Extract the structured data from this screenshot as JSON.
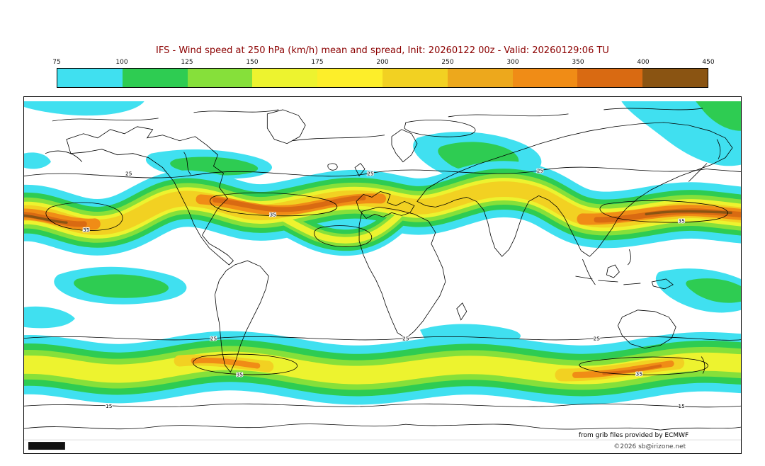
{
  "title": {
    "text": "IFS - Wind speed at 250 hPa (km/h) mean and spread, Init: 20260122 00z - Valid: 20260129:06 TU",
    "color": "#8b0000"
  },
  "colorbar": {
    "ticks": [
      "75",
      "100",
      "125",
      "150",
      "175",
      "200",
      "250",
      "300",
      "350",
      "400",
      "450"
    ],
    "colors": [
      "#40e0f0",
      "#2ecc52",
      "#86e03a",
      "#edf32f",
      "#fdee2a",
      "#f2d122",
      "#eda81c",
      "#f08c16",
      "#d96a12",
      "#8a5412"
    ]
  },
  "map": {
    "labels": {
      "spread_15": "15",
      "spread_25": "25",
      "spread_35": "35"
    },
    "credits": {
      "source": "from grib files provided by ECMWF",
      "copyright": "©2026 sb@irizone.net"
    }
  },
  "chart_data": {
    "type": "heatmap",
    "title": "IFS - Wind speed at 250 hPa (km/h) mean and spread, Init: 20260122 00z - Valid: 20260129:06 TU",
    "variable": "Wind speed at 250 hPa",
    "units": "km/h",
    "model": "IFS",
    "init": "20260122 00z",
    "valid": "20260129:06 TU",
    "scale_ticks": [
      75,
      100,
      125,
      150,
      175,
      200,
      250,
      300,
      350,
      400,
      450
    ],
    "scale_colors": [
      "#40e0f0",
      "#2ecc52",
      "#86e03a",
      "#edf32f",
      "#fdee2a",
      "#f2d122",
      "#eda81c",
      "#f08c16",
      "#d96a12",
      "#8a5412"
    ],
    "contour_label_values": [
      15,
      25,
      35
    ],
    "legend_position": "top",
    "projection": "global equirectangular"
  }
}
